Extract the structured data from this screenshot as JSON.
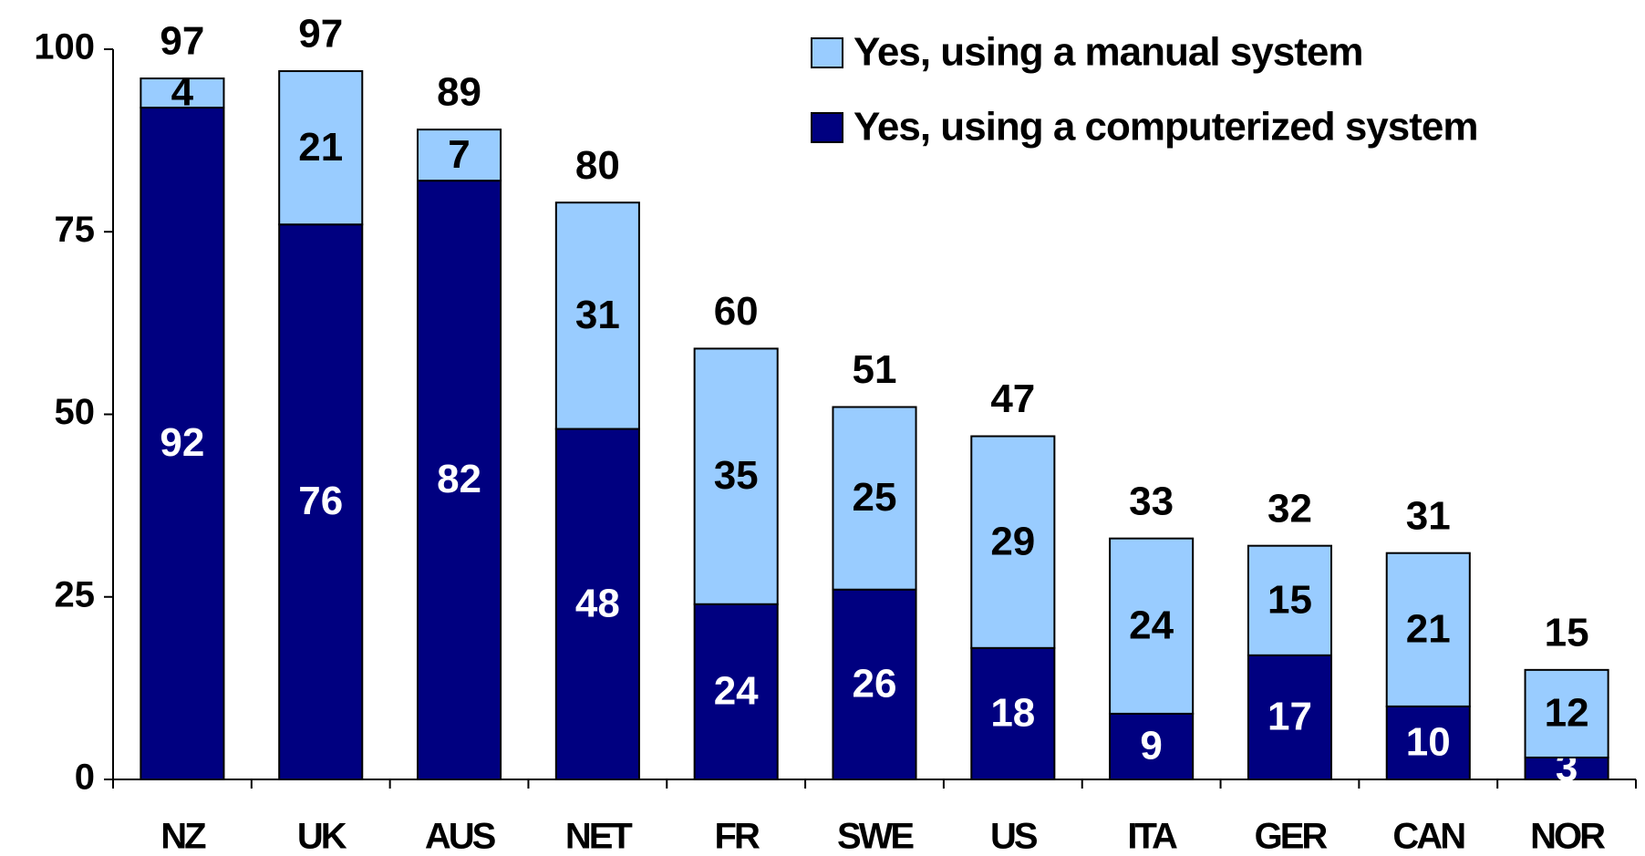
{
  "chart_data": {
    "type": "stacked_bar",
    "categories": [
      "NZ",
      "UK",
      "AUS",
      "NET",
      "FR",
      "SWE",
      "US",
      "ITA",
      "GER",
      "CAN",
      "NOR"
    ],
    "series": [
      {
        "name": "Yes, using a computerized system",
        "color": "#000080",
        "values": [
          92,
          76,
          82,
          48,
          24,
          26,
          18,
          9,
          17,
          10,
          3
        ]
      },
      {
        "name": "Yes, using a manual system",
        "color": "#99ccff",
        "values": [
          4,
          21,
          7,
          31,
          35,
          25,
          29,
          24,
          15,
          21,
          12
        ]
      }
    ],
    "totals": [
      97,
      97,
      89,
      80,
      60,
      51,
      47,
      33,
      32,
      31,
      15
    ],
    "ylim": [
      0,
      100
    ],
    "yticks": [
      0,
      25,
      50,
      75,
      100
    ],
    "grid": false,
    "legend": "top-right"
  }
}
